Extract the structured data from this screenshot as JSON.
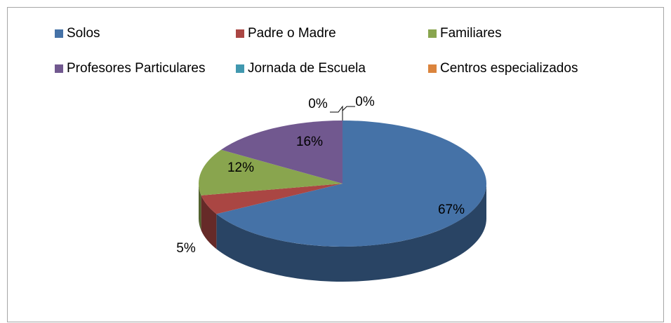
{
  "chart_data": {
    "type": "pie",
    "categories": [
      "Solos",
      "Padre o Madre",
      "Familiares",
      "Profesores Particulares",
      "Jornada de Escuela",
      "Centros especializados"
    ],
    "values": [
      67,
      5,
      12,
      16,
      0,
      0
    ],
    "value_labels": [
      "67%",
      "5%",
      "12%",
      "16%",
      "0%",
      "0%"
    ],
    "colors": [
      "#4572a7",
      "#aa4643",
      "#89a54e",
      "#71588f",
      "#4198af",
      "#db843d"
    ],
    "legend": "top"
  }
}
